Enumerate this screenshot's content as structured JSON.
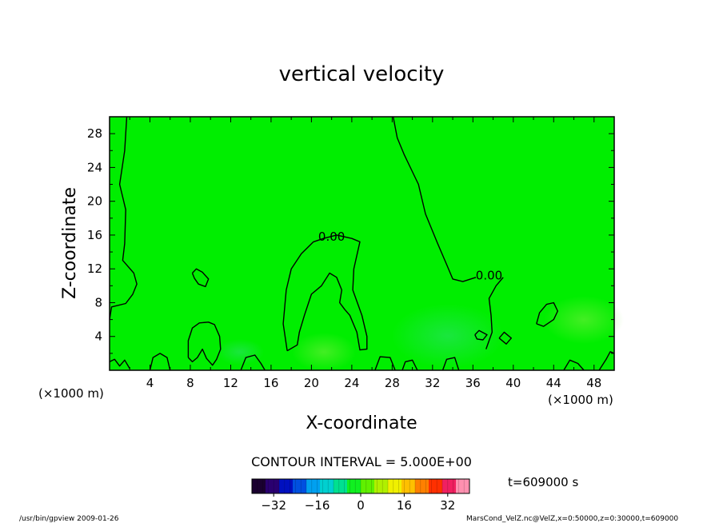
{
  "chart_data": {
    "type": "heatmap",
    "title": "vertical velocity",
    "xlabel": "X-coordinate",
    "ylabel": "Z-coordinate",
    "x_unit_left": "(×1000 m)",
    "x_unit_right": "(×1000 m)",
    "xlim": [
      0,
      50
    ],
    "ylim": [
      0,
      30
    ],
    "x_ticks": [
      4,
      8,
      12,
      16,
      20,
      24,
      28,
      32,
      36,
      40,
      44,
      48
    ],
    "y_ticks": [
      4,
      8,
      12,
      16,
      20,
      24,
      28
    ],
    "grid": false,
    "contour_labels": [
      {
        "text": "0.00",
        "x": 22.0,
        "y": 15.8
      },
      {
        "text": "0.00",
        "x": 37.6,
        "y": 11.2
      }
    ],
    "contour_lines": [
      {
        "name": "left-zero-contour",
        "points": [
          [
            1.7,
            30
          ],
          [
            1.5,
            26
          ],
          [
            1.0,
            22
          ],
          [
            1.6,
            19
          ],
          [
            1.5,
            15
          ],
          [
            1.3,
            13
          ],
          [
            2.4,
            11.5
          ],
          [
            2.7,
            10.2
          ],
          [
            2.3,
            9
          ],
          [
            1.6,
            7.9
          ],
          [
            0.2,
            7.5
          ],
          [
            0,
            6
          ]
        ]
      },
      {
        "name": "center-zero-contour",
        "points": [
          [
            17.6,
            2.3
          ],
          [
            17.2,
            5.5
          ],
          [
            17.5,
            9.5
          ],
          [
            18.0,
            12.0
          ],
          [
            19.0,
            13.8
          ],
          [
            20.2,
            15.2
          ],
          [
            21.2,
            15.6
          ],
          [
            22.5,
            16.0
          ],
          [
            24.0,
            15.6
          ],
          [
            24.8,
            15.2
          ],
          [
            24.2,
            12.0
          ],
          [
            24.1,
            9.5
          ],
          [
            25.0,
            6.5
          ],
          [
            25.5,
            4.0
          ],
          [
            25.5,
            2.5
          ],
          [
            24.8,
            2.4
          ],
          [
            24.5,
            4.5
          ],
          [
            23.8,
            6.5
          ],
          [
            23.3,
            7.2
          ],
          [
            22.8,
            8.0
          ],
          [
            23.0,
            9.5
          ],
          [
            22.5,
            11.0
          ],
          [
            21.8,
            11.5
          ],
          [
            21.0,
            10.0
          ],
          [
            20.0,
            9.0
          ],
          [
            19.3,
            6.5
          ],
          [
            18.8,
            4.5
          ],
          [
            18.6,
            3.0
          ],
          [
            17.6,
            2.3
          ]
        ]
      },
      {
        "name": "right-zero-contour",
        "points": [
          [
            28.1,
            30
          ],
          [
            28.5,
            27.5
          ],
          [
            29.2,
            25.5
          ],
          [
            30.6,
            22
          ],
          [
            31.3,
            18.5
          ],
          [
            32.5,
            15
          ],
          [
            33.4,
            12.5
          ],
          [
            34.0,
            10.8
          ],
          [
            35.0,
            10.5
          ],
          [
            36.3,
            11.0
          ]
        ]
      },
      {
        "name": "right-zero-contour-tail",
        "points": [
          [
            39.0,
            11.0
          ],
          [
            38.3,
            10.0
          ],
          [
            37.6,
            8.5
          ],
          [
            37.8,
            6.5
          ],
          [
            37.9,
            4.5
          ],
          [
            37.3,
            2.5
          ]
        ]
      },
      {
        "name": "blob-x9",
        "points": [
          [
            8.2,
            11.5
          ],
          [
            8.6,
            12.0
          ],
          [
            9.2,
            11.6
          ],
          [
            9.8,
            10.8
          ],
          [
            9.5,
            9.9
          ],
          [
            8.8,
            10.2
          ],
          [
            8.4,
            10.9
          ],
          [
            8.2,
            11.5
          ]
        ]
      },
      {
        "name": "blob-x8-low",
        "points": [
          [
            7.8,
            1.5
          ],
          [
            7.8,
            3.5
          ],
          [
            8.2,
            5.0
          ],
          [
            8.9,
            5.6
          ],
          [
            9.8,
            5.7
          ],
          [
            10.4,
            5.4
          ],
          [
            10.9,
            4.0
          ],
          [
            11.0,
            2.5
          ],
          [
            10.6,
            1.3
          ],
          [
            10.2,
            0.6
          ],
          [
            9.6,
            1.4
          ],
          [
            9.2,
            2.5
          ],
          [
            8.7,
            1.5
          ],
          [
            8.2,
            1.0
          ],
          [
            7.8,
            1.5
          ]
        ]
      },
      {
        "name": "blob-x43",
        "points": [
          [
            42.3,
            5.5
          ],
          [
            42.6,
            6.8
          ],
          [
            43.3,
            7.8
          ],
          [
            44.0,
            8.0
          ],
          [
            44.4,
            7.0
          ],
          [
            44.0,
            6.0
          ],
          [
            43.0,
            5.2
          ],
          [
            42.3,
            5.5
          ]
        ]
      },
      {
        "name": "blob-x36",
        "points": [
          [
            36.2,
            4.2
          ],
          [
            36.6,
            4.7
          ],
          [
            37.4,
            4.2
          ],
          [
            37.0,
            3.6
          ],
          [
            36.4,
            3.7
          ],
          [
            36.2,
            4.2
          ]
        ]
      },
      {
        "name": "blob-x39",
        "points": [
          [
            38.6,
            3.8
          ],
          [
            39.1,
            4.5
          ],
          [
            39.8,
            3.8
          ],
          [
            39.3,
            3.1
          ],
          [
            38.6,
            3.8
          ]
        ]
      },
      {
        "name": "wave-a",
        "points": [
          [
            0,
            1.0
          ],
          [
            0.5,
            1.3
          ],
          [
            1.0,
            0.5
          ],
          [
            1.5,
            1.2
          ],
          [
            2.0,
            0.2
          ]
        ]
      },
      {
        "name": "wave-b",
        "points": [
          [
            4.0,
            0
          ],
          [
            4.3,
            1.5
          ],
          [
            5.0,
            2.0
          ],
          [
            5.7,
            1.5
          ],
          [
            6.0,
            0
          ]
        ]
      },
      {
        "name": "wave-c",
        "points": [
          [
            13.0,
            0
          ],
          [
            13.5,
            1.5
          ],
          [
            14.4,
            1.8
          ],
          [
            15.0,
            0.8
          ],
          [
            15.4,
            0
          ]
        ]
      },
      {
        "name": "wave-d",
        "points": [
          [
            26.3,
            0
          ],
          [
            26.8,
            1.6
          ],
          [
            27.8,
            1.5
          ],
          [
            28.3,
            0
          ]
        ]
      },
      {
        "name": "wave-e",
        "points": [
          [
            29.0,
            0
          ],
          [
            29.3,
            1.0
          ],
          [
            30.0,
            1.2
          ],
          [
            30.5,
            0
          ]
        ]
      },
      {
        "name": "wave-f",
        "points": [
          [
            33.0,
            0
          ],
          [
            33.4,
            1.3
          ],
          [
            34.2,
            1.5
          ],
          [
            34.6,
            0
          ]
        ]
      },
      {
        "name": "wave-g",
        "points": [
          [
            45.0,
            0
          ],
          [
            45.6,
            1.2
          ],
          [
            46.4,
            0.8
          ],
          [
            47.0,
            0
          ]
        ]
      },
      {
        "name": "wave-h",
        "points": [
          [
            48.5,
            0
          ],
          [
            49.2,
            1.3
          ],
          [
            49.6,
            2.2
          ],
          [
            50,
            2.0
          ]
        ]
      }
    ],
    "contour_interval_text": "CONTOUR INTERVAL = 5.000E+00",
    "colorbar": {
      "min": -40,
      "max": 40,
      "ticks": [
        -32,
        -16,
        0,
        16,
        32
      ],
      "colors": [
        "#1a0030",
        "#2a0070",
        "#0010c0",
        "#0050e0",
        "#00a0f0",
        "#00d0d0",
        "#00e090",
        "#10f020",
        "#60f000",
        "#b0f000",
        "#f0f000",
        "#ffc000",
        "#ff8000",
        "#ff3000",
        "#f02060",
        "#ff90b0"
      ]
    },
    "time_text": "t=609000 s",
    "footer_left": "/usr/bin/gpview  2009-01-26",
    "footer_right": "MarsCond_VelZ.nc@VelZ,x=0:50000,z=0:30000,t=609000",
    "colors": {
      "field": "#00ee00",
      "field_light": "#33f050",
      "frame": "#000000"
    }
  }
}
